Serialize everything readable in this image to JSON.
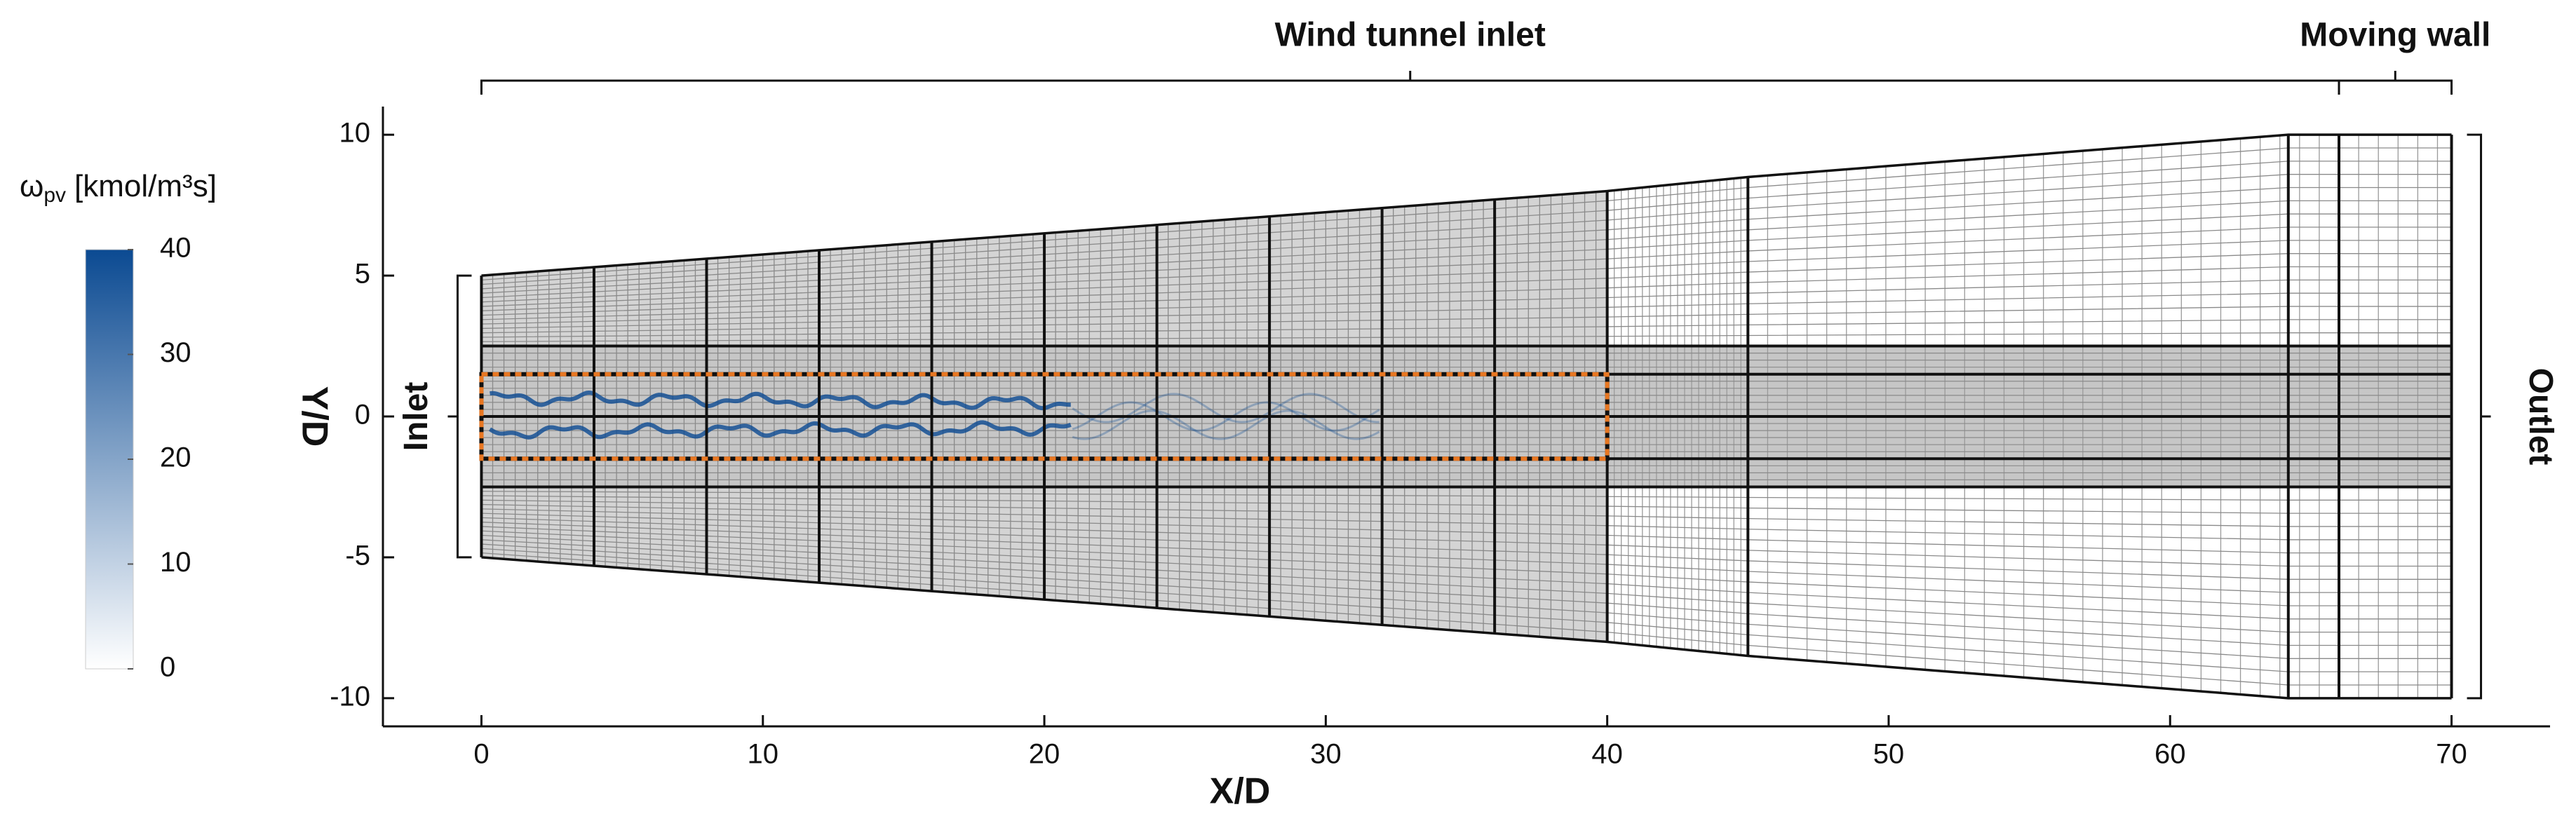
{
  "chart_data": {
    "type": "mesh",
    "xlabel": "X/D",
    "ylabel": "Y/D",
    "xlim": [
      -3.5,
      73.5
    ],
    "ylim": [
      -11,
      11
    ],
    "xticks": [
      0,
      10,
      20,
      30,
      40,
      50,
      60,
      70
    ],
    "yticks": [
      -10,
      -5,
      0,
      5,
      10
    ],
    "domain": {
      "x": [
        0,
        40,
        45,
        64.2,
        66,
        70
      ],
      "y_top": [
        5,
        8,
        8.5,
        10,
        10,
        10
      ]
    },
    "block_x": [
      0,
      4,
      8,
      12,
      16,
      20,
      24,
      28,
      32,
      36,
      40,
      45,
      64.2,
      66,
      70
    ],
    "block_y": [
      -2.5,
      -1.5,
      0,
      1.5,
      2.5
    ],
    "region": {
      "x": [
        0,
        40
      ],
      "y": [
        -1.5,
        1.5
      ],
      "color": "#e87722"
    },
    "colorbar": {
      "symbol": "ω",
      "subscript": "pv",
      "unit": "[kmol/m³s]",
      "clim": [
        0,
        40
      ],
      "cticks": [
        0,
        10,
        20,
        30,
        40
      ],
      "colors": [
        "#ffffff",
        "#0b4a92"
      ]
    },
    "annotations": [
      {
        "text": "Wind tunnel inlet",
        "x": [
          0,
          66
        ]
      },
      {
        "text": "Moving wall",
        "x": [
          66,
          70
        ]
      },
      {
        "text": "Inlet",
        "y": [
          -5,
          5
        ]
      },
      {
        "text": "Outlet",
        "y": [
          -10,
          10
        ]
      }
    ]
  }
}
